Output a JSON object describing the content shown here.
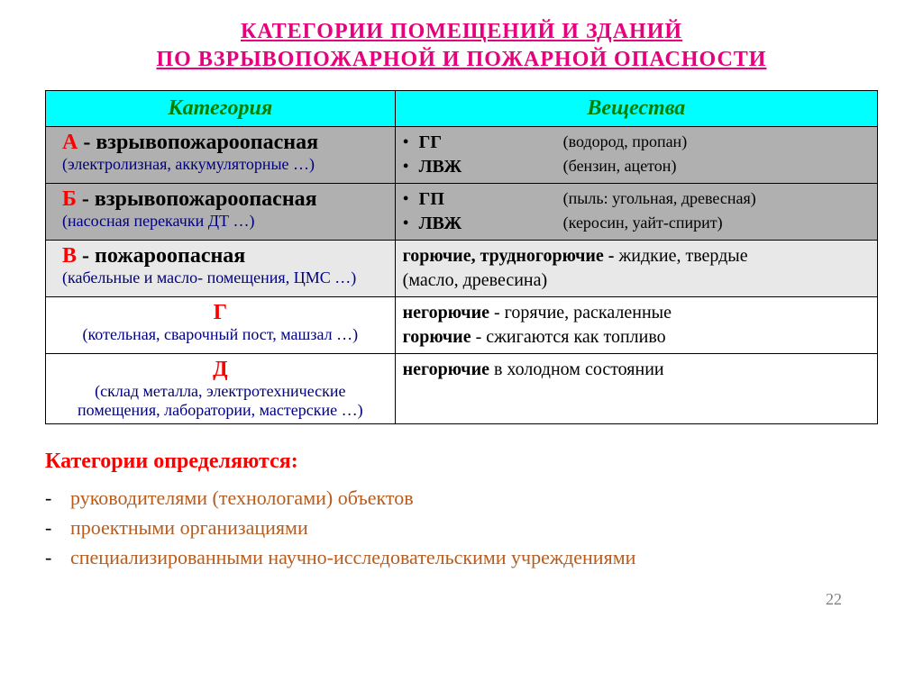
{
  "title_line1": "КАТЕГОРИИ  ПОМЕЩЕНИЙ  И  ЗДАНИЙ",
  "title_line2": "ПО  ВЗРЫВОПОЖАРНОЙ  И  ПОЖАРНОЙ  ОПАСНОСТИ",
  "headers": {
    "category": "Категория",
    "substances": "Вещества"
  },
  "rows": {
    "a": {
      "letter": "А",
      "name": " - взрывопожароопасная",
      "note": "(электролизная, аккумуляторные …)",
      "sub1_abbr": "ГГ",
      "sub1_paren": "(водород, пропан)",
      "sub2_abbr": "ЛВЖ",
      "sub2_paren": "(бензин, ацетон)"
    },
    "b": {
      "letter": "Б",
      "name": " - взрывопожароопасная",
      "note": "(насосная перекачки ДТ …)",
      "sub1_abbr": "ГП",
      "sub1_paren": "(пыль: угольная, древесная)",
      "sub2_abbr": "ЛВЖ",
      "sub2_paren": "(керосин, уайт-спирит)"
    },
    "v": {
      "letter": "В",
      "name": " - пожароопасная",
      "note": "(кабельные и масло- помещения, ЦМС …)",
      "sub_bold": "горючие, трудногорючие - ",
      "sub_rest": "жидкие, твердые",
      "sub_paren": "(масло, древесина)"
    },
    "g": {
      "letter": "Г",
      "note": "(котельная, сварочный пост, машзал …)",
      "l1_bold": "негорючие",
      "l1_rest": " - горячие, раскаленные",
      "l2_bold": "горючие",
      "l2_rest": " - сжигаются как топливо"
    },
    "d": {
      "letter": "Д",
      "note": "(склад металла, электротехнические помещения, лаборатории, мастерские …)",
      "l1_bold": "негорючие",
      "l1_rest": " в холодном состоянии"
    }
  },
  "determined_heading": "Категории определяются:",
  "determined_items": {
    "i1": "руководителями (технологами) объектов",
    "i2": "проектными организациями",
    "i3": "специализированными научно-исследовательскими учреждениями"
  },
  "page_number": "22",
  "colors": {
    "title": "#e6007e",
    "header_bg": "#00ffff",
    "header_text": "#008000",
    "row_ab_bg": "#b0b0b0",
    "row_v_bg": "#e8e8e8",
    "letter": "#ff0000",
    "note": "#000080",
    "list_text": "#b85c1e",
    "page_num": "#808080"
  }
}
